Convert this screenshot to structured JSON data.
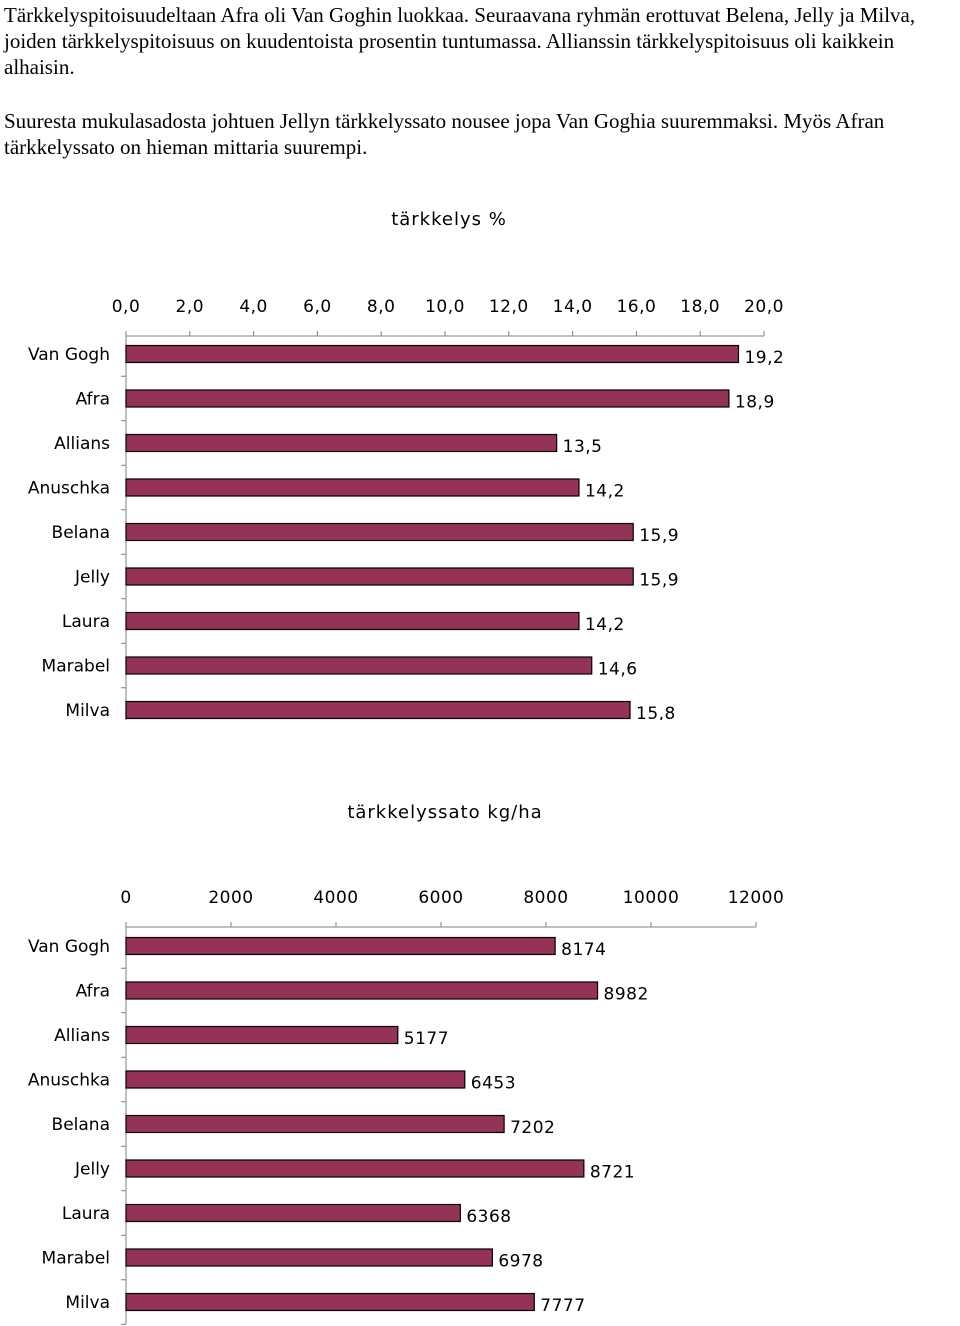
{
  "text": {
    "paragraph1": "Tärkkelyspitoisuudeltaan Afra oli Van Goghin luokkaa. Seuraavana ryhmän erottuvat Belena, Jelly ja Milva, joiden tärkkelyspitoisuus on kuudentoista prosentin tuntumassa. Allianssin tärkkelyspitoisuus oli kaikkein alhaisin.",
    "paragraph2": "Suuresta mukulasadosta johtuen Jellyn tärkkelyssato nousee jopa Van Goghia suuremmaksi. Myös Afran tärkkelyssato on hieman mittaria suurempi."
  },
  "colors": {
    "bar_fill": "#943257",
    "bar_stroke": "#000000",
    "axis": "#808080"
  },
  "chart_data": [
    {
      "type": "bar",
      "orientation": "horizontal",
      "title": "tärkkelys %",
      "categories": [
        "Van Gogh",
        "Afra",
        "Allians",
        "Anuschka",
        "Belana",
        "Jelly",
        "Laura",
        "Marabel",
        "Milva"
      ],
      "values": [
        19.2,
        18.9,
        13.5,
        14.2,
        15.9,
        15.9,
        14.2,
        14.6,
        15.8
      ],
      "value_labels": [
        "19,2",
        "18,9",
        "13,5",
        "14,2",
        "15,9",
        "15,9",
        "14,2",
        "14,6",
        "15,8"
      ],
      "xlim": [
        0,
        20
      ],
      "xticks": [
        0,
        2,
        4,
        6,
        8,
        10,
        12,
        14,
        16,
        18,
        20
      ],
      "xtick_labels": [
        "0,0",
        "2,0",
        "4,0",
        "6,0",
        "8,0",
        "10,0",
        "12,0",
        "14,0",
        "16,0",
        "18,0",
        "20,0"
      ],
      "axis_position": "top",
      "grid": false,
      "legend": "none"
    },
    {
      "type": "bar",
      "orientation": "horizontal",
      "title": "tärkkelyssato kg/ha",
      "categories": [
        "Van Gogh",
        "Afra",
        "Allians",
        "Anuschka",
        "Belana",
        "Jelly",
        "Laura",
        "Marabel",
        "Milva"
      ],
      "values": [
        8174,
        8982,
        5177,
        6453,
        7202,
        8721,
        6368,
        6978,
        7777
      ],
      "value_labels": [
        "8174",
        "8982",
        "5177",
        "6453",
        "7202",
        "8721",
        "6368",
        "6978",
        "7777"
      ],
      "xlim": [
        0,
        12000
      ],
      "xticks": [
        0,
        2000,
        4000,
        6000,
        8000,
        10000,
        12000
      ],
      "xtick_labels": [
        "0",
        "2000",
        "4000",
        "6000",
        "8000",
        "10000",
        "12000"
      ],
      "axis_position": "top",
      "grid": false,
      "legend": "none"
    }
  ]
}
